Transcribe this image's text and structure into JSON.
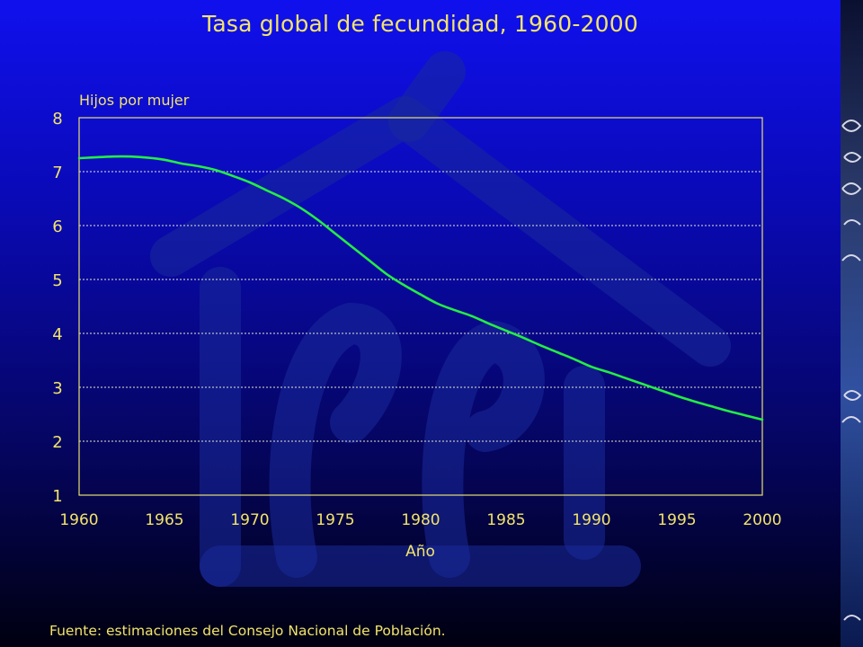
{
  "title": "Tasa global de fecundidad, 1960-2000",
  "source": "Fuente: estimaciones del Consejo Nacional de Población.",
  "colors": {
    "text": "#f2e46a",
    "line": "#22ee44",
    "axis": "#e8e070"
  },
  "chart_data": {
    "type": "line",
    "title": "Tasa global de fecundidad, 1960-2000",
    "xlabel": "Año",
    "ylabel": "Hijos por mujer",
    "xlim": [
      1960,
      2000
    ],
    "ylim": [
      1,
      8
    ],
    "xticks": [
      1960,
      1965,
      1970,
      1975,
      1980,
      1985,
      1990,
      1995,
      2000
    ],
    "yticks": [
      1,
      2,
      3,
      4,
      5,
      6,
      7,
      8
    ],
    "grid": "horizontal dotted",
    "legend": "none",
    "x": [
      1960,
      1962,
      1963,
      1964,
      1965,
      1966,
      1967,
      1968,
      1969,
      1970,
      1971,
      1972,
      1973,
      1974,
      1975,
      1976,
      1977,
      1978,
      1979,
      1980,
      1981,
      1982,
      1983,
      1984,
      1985,
      1986,
      1987,
      1988,
      1989,
      1990,
      1991,
      1992,
      1993,
      1994,
      1995,
      1996,
      1997,
      1998,
      1999,
      2000
    ],
    "series": [
      {
        "values": [
          7.25,
          7.28,
          7.28,
          7.26,
          7.22,
          7.15,
          7.1,
          7.03,
          6.92,
          6.8,
          6.65,
          6.5,
          6.32,
          6.1,
          5.85,
          5.6,
          5.35,
          5.1,
          4.9,
          4.72,
          4.55,
          4.43,
          4.32,
          4.18,
          4.05,
          3.92,
          3.78,
          3.65,
          3.52,
          3.38,
          3.28,
          3.17,
          3.06,
          2.95,
          2.84,
          2.74,
          2.65,
          2.56,
          2.48,
          2.4
        ]
      }
    ]
  }
}
